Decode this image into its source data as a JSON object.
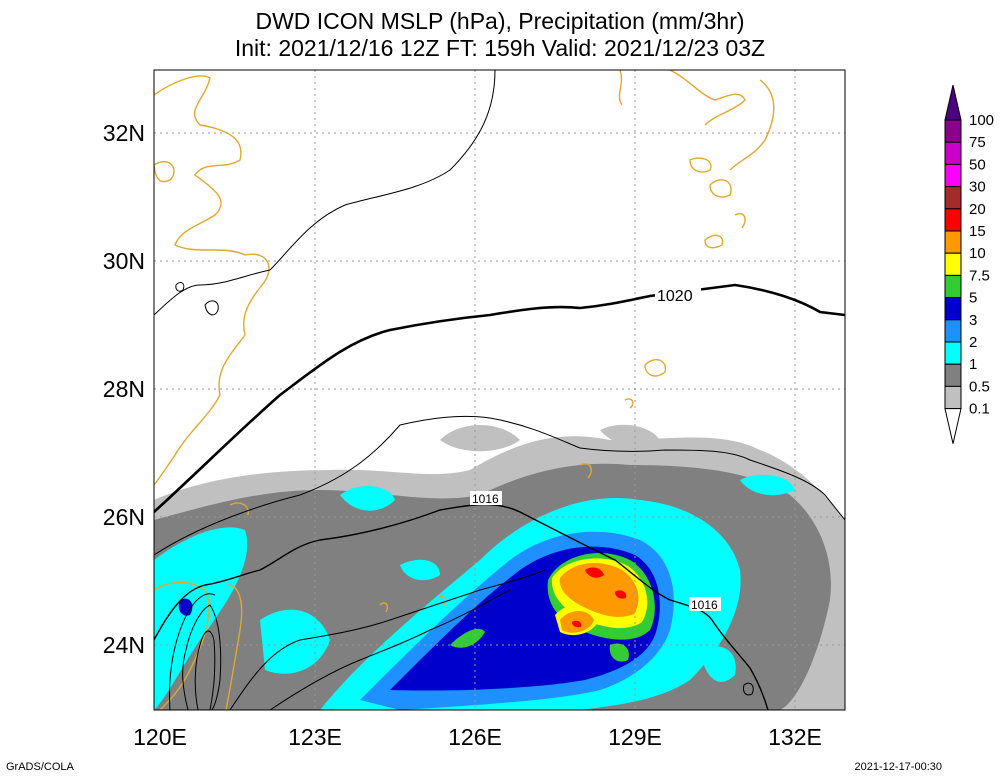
{
  "title": {
    "line1": "DWD ICON MSLP (hPa), Precipitation (mm/3hr)",
    "line2": "Init: 2021/12/16 12Z  FT: 159h  Valid: 2021/12/23 03Z"
  },
  "axes": {
    "lat_labels": [
      "32N",
      "30N",
      "28N",
      "26N",
      "24N"
    ],
    "lon_labels": [
      "120E",
      "123E",
      "126E",
      "129E",
      "132E"
    ]
  },
  "isobar_labels": [
    "1020",
    "1016",
    "1016"
  ],
  "colorbar": {
    "labels": [
      "100",
      "75",
      "50",
      "30",
      "20",
      "15",
      "10",
      "7.5",
      "5",
      "3",
      "2",
      "1",
      "0.5",
      "0.1"
    ],
    "colors": [
      "#4b0082",
      "#8b008b",
      "#cc00cc",
      "#ff00ff",
      "#a52a2a",
      "#ff0000",
      "#ff9900",
      "#ffff00",
      "#33cc33",
      "#0000cc",
      "#1e90ff",
      "#00ffff",
      "#808080",
      "#c0c0c0",
      "#ffffff"
    ]
  },
  "colors": {
    "coast": "#e0a830",
    "isobar": "#000000",
    "grid": "#999999"
  },
  "footer": {
    "left": "GrADS/COLA",
    "right": "2021-12-17-00:30"
  }
}
